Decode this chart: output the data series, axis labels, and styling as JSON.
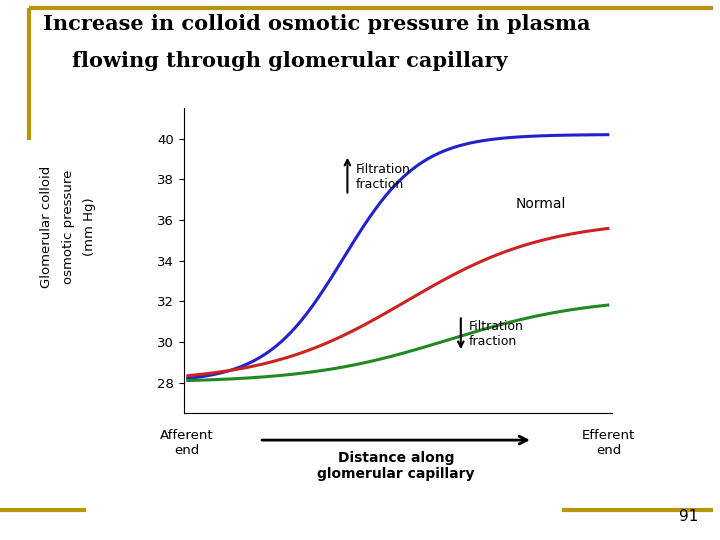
{
  "title_line1": "Increase in colloid osmotic pressure in plasma",
  "title_line2": "    flowing through glomerular capillary",
  "ylabel_line1": "Glomerular colloid",
  "ylabel_line2": "osmotic pressure",
  "ylabel_line3": "(mm Hg)",
  "xlabel_bold": "Distance along\nglomerular capillary",
  "xlabel_label_afferent": "Afferent\nend",
  "xlabel_label_efferent": "Efferent\nend",
  "ylim": [
    26.5,
    41.5
  ],
  "yticks": [
    28,
    30,
    32,
    34,
    36,
    38,
    40
  ],
  "bg_color": "#ffffff",
  "border_color": "#b8960c",
  "curve_blue_color": "#2222cc",
  "curve_red_color": "#cc2222",
  "curve_green_color": "#228822",
  "annotation_up_text": "Filtration\nfraction",
  "annotation_down_text": "Filtration\nfraction",
  "annotation_normal_text": "Normal",
  "page_number": "91",
  "lw": 2.2
}
